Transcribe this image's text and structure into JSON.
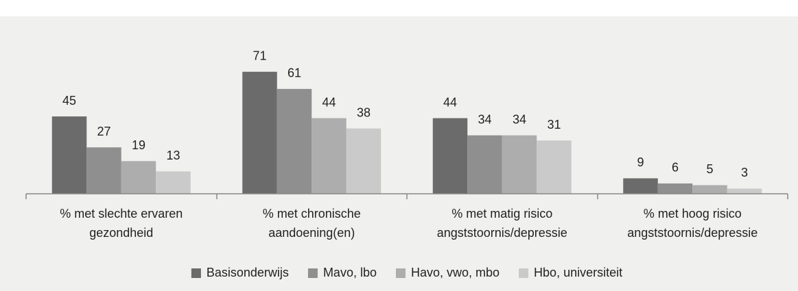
{
  "chart_data": {
    "type": "bar",
    "categories": [
      [
        "% met slechte ervaren",
        "gezondheid"
      ],
      [
        "% met chronische",
        "aandoening(en)"
      ],
      [
        "% met matig risico",
        "angststoornis/depressie"
      ],
      [
        "% met hoog risico",
        "angststoornis/depressie"
      ]
    ],
    "series": [
      {
        "name": "Basisonderwijs",
        "color": "#6b6b6b",
        "values": [
          45,
          71,
          44,
          9
        ]
      },
      {
        "name": "Mavo, lbo",
        "color": "#8f8f8f",
        "values": [
          27,
          61,
          34,
          6
        ]
      },
      {
        "name": "Havo, vwo, mbo",
        "color": "#adadad",
        "values": [
          19,
          44,
          34,
          5
        ]
      },
      {
        "name": "Hbo, universiteit",
        "color": "#cacaca",
        "values": [
          13,
          38,
          31,
          3
        ]
      }
    ],
    "ylim": [
      0,
      100
    ],
    "legend": "bottom"
  }
}
